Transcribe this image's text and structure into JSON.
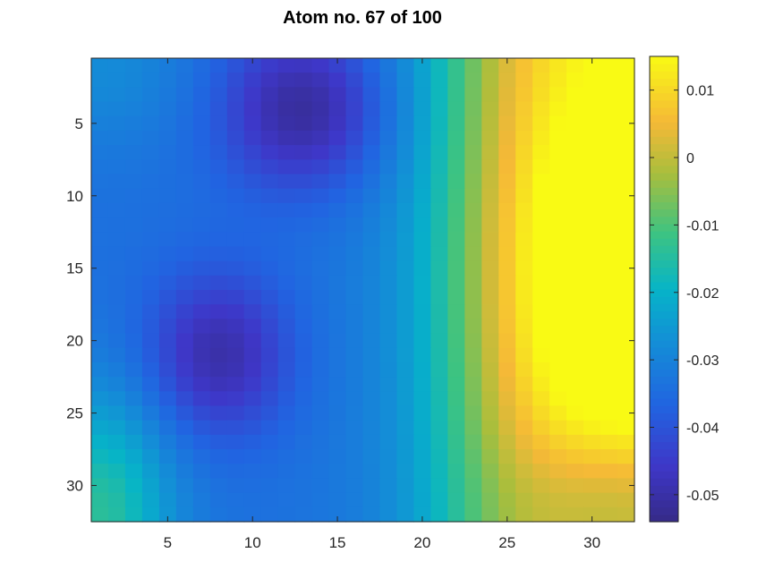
{
  "chart_data": {
    "type": "heatmap",
    "title": "Atom no. 67 of 100",
    "xlabel": "",
    "ylabel": "",
    "x_range": [
      1,
      32
    ],
    "y_range": [
      1,
      32
    ],
    "y_reversed": true,
    "x_ticks": [
      5,
      10,
      15,
      20,
      25,
      30
    ],
    "y_ticks": [
      5,
      10,
      15,
      20,
      25,
      30
    ],
    "colormap": "parula",
    "colorbar": {
      "range": [
        -0.054,
        0.015
      ],
      "ticks": [
        0.01,
        0,
        -0.01,
        -0.02,
        -0.03,
        -0.04,
        -0.05
      ],
      "tick_labels": [
        "0.01",
        "0",
        "-0.01",
        "-0.02",
        "-0.03",
        "-0.04",
        "-0.05"
      ],
      "placement": "right"
    },
    "features": [
      {
        "row": 4,
        "col": 13,
        "value": -0.053
      },
      {
        "row": 22,
        "col": 8,
        "value": -0.052
      },
      {
        "row": 14,
        "col": 31,
        "value": 0.015
      },
      {
        "row": 32,
        "col": 1,
        "value": -0.013
      },
      {
        "row": 1,
        "col": 1,
        "value": -0.033
      }
    ]
  }
}
